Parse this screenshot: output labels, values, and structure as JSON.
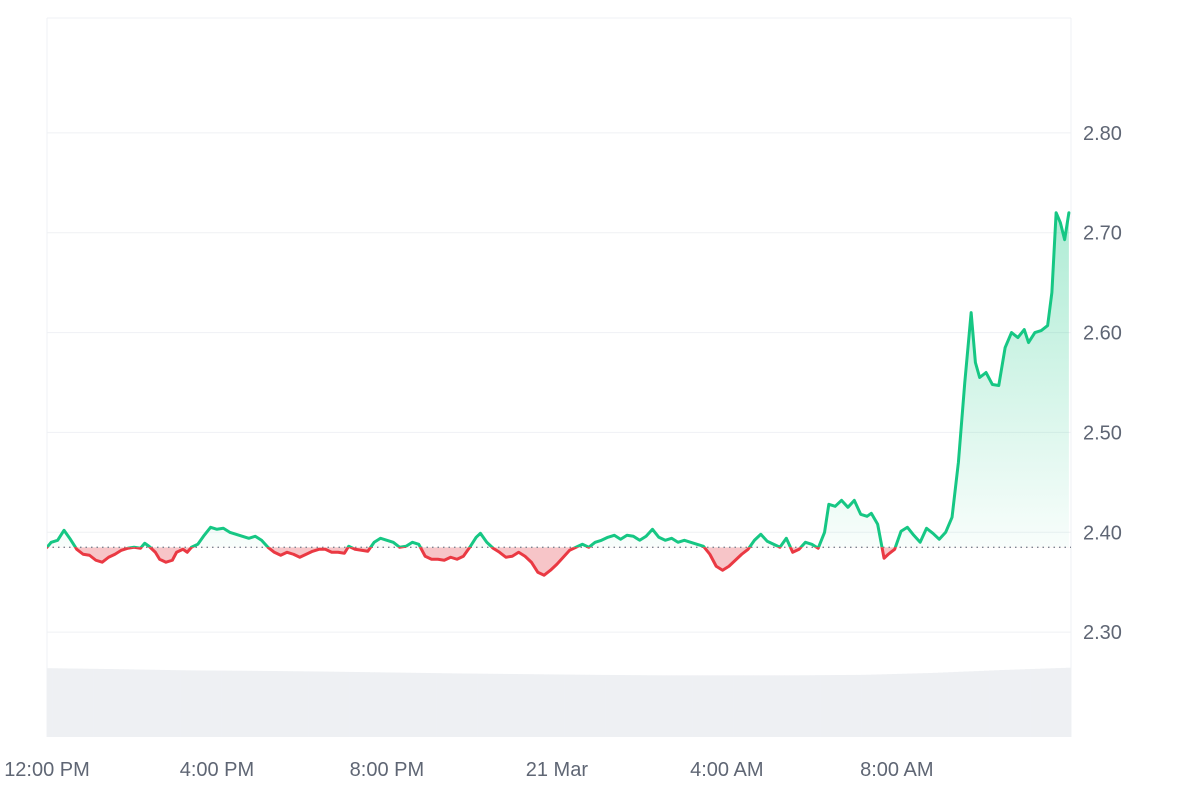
{
  "chart_data": {
    "type": "area",
    "baseline": 2.385,
    "ylim": [
      2.195,
      2.915
    ],
    "y_ticks": [
      "2.30",
      "2.40",
      "2.50",
      "2.60",
      "2.70",
      "2.80"
    ],
    "y_tick_values": [
      2.3,
      2.4,
      2.5,
      2.6,
      2.7,
      2.8
    ],
    "x_labels": [
      "12:00 PM",
      "4:00 PM",
      "8:00 PM",
      "21 Mar",
      "4:00 AM",
      "8:00 AM"
    ],
    "x_label_hours": [
      0,
      4,
      8,
      12,
      16,
      20
    ],
    "x_range_hours": [
      0,
      24.1
    ],
    "grid": true,
    "colors": {
      "up": "#16c784",
      "down": "#ea3943",
      "up_fill_top": "#16c784",
      "down_fill": "#f7c5c8",
      "volume": "#eef0f3",
      "grid": "#eff1f4",
      "baseline": "#7d8390"
    },
    "series": [
      {
        "points": [
          [
            0.0,
            2.385
          ],
          [
            0.1,
            2.39
          ],
          [
            0.25,
            2.392
          ],
          [
            0.4,
            2.402
          ],
          [
            0.55,
            2.393
          ],
          [
            0.7,
            2.383
          ],
          [
            0.85,
            2.378
          ],
          [
            1.0,
            2.377
          ],
          [
            1.15,
            2.372
          ],
          [
            1.3,
            2.37
          ],
          [
            1.45,
            2.375
          ],
          [
            1.6,
            2.378
          ],
          [
            1.75,
            2.382
          ],
          [
            1.9,
            2.384
          ],
          [
            2.05,
            2.385
          ],
          [
            2.2,
            2.384
          ],
          [
            2.3,
            2.389
          ],
          [
            2.4,
            2.386
          ],
          [
            2.55,
            2.38
          ],
          [
            2.65,
            2.373
          ],
          [
            2.8,
            2.37
          ],
          [
            2.95,
            2.372
          ],
          [
            3.05,
            2.38
          ],
          [
            3.2,
            2.383
          ],
          [
            3.3,
            2.38
          ],
          [
            3.4,
            2.385
          ],
          [
            3.55,
            2.388
          ],
          [
            3.7,
            2.397
          ],
          [
            3.85,
            2.405
          ],
          [
            4.0,
            2.403
          ],
          [
            4.15,
            2.404
          ],
          [
            4.3,
            2.4
          ],
          [
            4.45,
            2.398
          ],
          [
            4.6,
            2.396
          ],
          [
            4.75,
            2.394
          ],
          [
            4.9,
            2.396
          ],
          [
            5.05,
            2.392
          ],
          [
            5.2,
            2.385
          ],
          [
            5.35,
            2.38
          ],
          [
            5.5,
            2.377
          ],
          [
            5.65,
            2.38
          ],
          [
            5.8,
            2.378
          ],
          [
            5.95,
            2.375
          ],
          [
            6.1,
            2.378
          ],
          [
            6.25,
            2.381
          ],
          [
            6.4,
            2.383
          ],
          [
            6.55,
            2.383
          ],
          [
            6.7,
            2.38
          ],
          [
            6.85,
            2.38
          ],
          [
            7.0,
            2.379
          ],
          [
            7.1,
            2.386
          ],
          [
            7.25,
            2.383
          ],
          [
            7.4,
            2.382
          ],
          [
            7.55,
            2.381
          ],
          [
            7.7,
            2.39
          ],
          [
            7.85,
            2.394
          ],
          [
            8.0,
            2.392
          ],
          [
            8.15,
            2.39
          ],
          [
            8.3,
            2.385
          ],
          [
            8.45,
            2.386
          ],
          [
            8.6,
            2.39
          ],
          [
            8.75,
            2.388
          ],
          [
            8.9,
            2.376
          ],
          [
            9.05,
            2.373
          ],
          [
            9.2,
            2.373
          ],
          [
            9.35,
            2.372
          ],
          [
            9.5,
            2.375
          ],
          [
            9.65,
            2.373
          ],
          [
            9.8,
            2.376
          ],
          [
            9.95,
            2.385
          ],
          [
            10.1,
            2.395
          ],
          [
            10.2,
            2.399
          ],
          [
            10.35,
            2.39
          ],
          [
            10.5,
            2.384
          ],
          [
            10.65,
            2.38
          ],
          [
            10.8,
            2.375
          ],
          [
            10.95,
            2.376
          ],
          [
            11.1,
            2.38
          ],
          [
            11.25,
            2.376
          ],
          [
            11.4,
            2.37
          ],
          [
            11.55,
            2.36
          ],
          [
            11.7,
            2.357
          ],
          [
            11.85,
            2.362
          ],
          [
            12.0,
            2.368
          ],
          [
            12.15,
            2.375
          ],
          [
            12.3,
            2.382
          ],
          [
            12.45,
            2.385
          ],
          [
            12.6,
            2.388
          ],
          [
            12.75,
            2.385
          ],
          [
            12.9,
            2.39
          ],
          [
            13.05,
            2.392
          ],
          [
            13.2,
            2.395
          ],
          [
            13.35,
            2.397
          ],
          [
            13.5,
            2.393
          ],
          [
            13.65,
            2.397
          ],
          [
            13.8,
            2.396
          ],
          [
            13.95,
            2.392
          ],
          [
            14.1,
            2.396
          ],
          [
            14.25,
            2.403
          ],
          [
            14.4,
            2.395
          ],
          [
            14.55,
            2.392
          ],
          [
            14.7,
            2.394
          ],
          [
            14.85,
            2.39
          ],
          [
            15.0,
            2.392
          ],
          [
            15.15,
            2.39
          ],
          [
            15.3,
            2.388
          ],
          [
            15.45,
            2.386
          ],
          [
            15.6,
            2.378
          ],
          [
            15.75,
            2.366
          ],
          [
            15.9,
            2.362
          ],
          [
            16.05,
            2.366
          ],
          [
            16.2,
            2.372
          ],
          [
            16.35,
            2.378
          ],
          [
            16.5,
            2.383
          ],
          [
            16.65,
            2.392
          ],
          [
            16.8,
            2.398
          ],
          [
            16.95,
            2.391
          ],
          [
            17.1,
            2.388
          ],
          [
            17.25,
            2.385
          ],
          [
            17.4,
            2.394
          ],
          [
            17.55,
            2.38
          ],
          [
            17.7,
            2.383
          ],
          [
            17.85,
            2.39
          ],
          [
            18.0,
            2.388
          ],
          [
            18.15,
            2.384
          ],
          [
            18.3,
            2.4
          ],
          [
            18.4,
            2.428
          ],
          [
            18.55,
            2.426
          ],
          [
            18.7,
            2.432
          ],
          [
            18.85,
            2.425
          ],
          [
            19.0,
            2.432
          ],
          [
            19.15,
            2.418
          ],
          [
            19.3,
            2.416
          ],
          [
            19.4,
            2.419
          ],
          [
            19.55,
            2.408
          ],
          [
            19.7,
            2.374
          ],
          [
            19.8,
            2.378
          ],
          [
            19.95,
            2.383
          ],
          [
            20.1,
            2.401
          ],
          [
            20.25,
            2.405
          ],
          [
            20.4,
            2.397
          ],
          [
            20.55,
            2.39
          ],
          [
            20.7,
            2.404
          ],
          [
            20.85,
            2.399
          ],
          [
            21.0,
            2.393
          ],
          [
            21.15,
            2.4
          ],
          [
            21.3,
            2.415
          ],
          [
            21.45,
            2.47
          ],
          [
            21.6,
            2.55
          ],
          [
            21.75,
            2.62
          ],
          [
            21.85,
            2.57
          ],
          [
            21.95,
            2.555
          ],
          [
            22.1,
            2.56
          ],
          [
            22.25,
            2.548
          ],
          [
            22.4,
            2.547
          ],
          [
            22.55,
            2.585
          ],
          [
            22.7,
            2.6
          ],
          [
            22.85,
            2.595
          ],
          [
            23.0,
            2.603
          ],
          [
            23.1,
            2.59
          ],
          [
            23.25,
            2.6
          ],
          [
            23.4,
            2.602
          ],
          [
            23.55,
            2.607
          ],
          [
            23.65,
            2.64
          ],
          [
            23.75,
            2.72
          ],
          [
            23.85,
            2.71
          ],
          [
            23.95,
            2.693
          ],
          [
            24.05,
            2.72
          ]
        ]
      }
    ],
    "volume": {
      "levels": [
        0.29,
        0.286,
        0.281,
        0.279,
        0.276,
        0.272,
        0.268,
        0.265,
        0.262,
        0.26,
        0.26,
        0.26,
        0.262,
        0.27,
        0.282,
        0.292
      ]
    }
  }
}
